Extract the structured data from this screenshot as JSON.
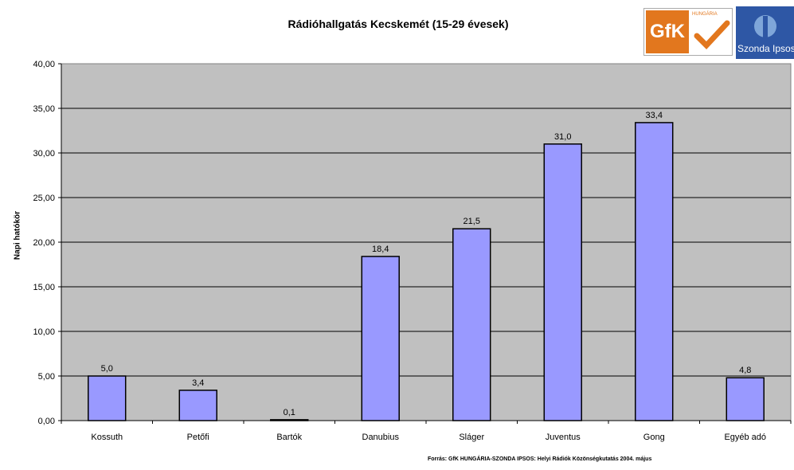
{
  "logos": {
    "gfk_text": "GfK",
    "gfk_sub": "HUNGÁRIA",
    "szonda_text": "Szonda Ipsos",
    "gfk_color": "#e2771e",
    "szonda_color": "#2e57a5"
  },
  "source_note": "Forrás: GfK HUNGÁRIA-SZONDA IPSOS: Helyi Rádiók Közönségkutatás 2004. május",
  "chart_data": {
    "type": "bar",
    "title": "Rádióhallgatás Kecskemét (15-29 évesek)",
    "xlabel": "",
    "ylabel": "Napi hatókör",
    "categories": [
      "Kossuth",
      "Petőfi",
      "Bartók",
      "Danubius",
      "Sláger",
      "Juventus",
      "Gong",
      "Egyéb adó"
    ],
    "values": [
      5.0,
      3.4,
      0.1,
      18.4,
      21.5,
      31.0,
      33.4,
      4.8
    ],
    "data_labels": [
      "5,0",
      "3,4",
      "0,1",
      "18,4",
      "21,5",
      "31,0",
      "33,4",
      "4,8"
    ],
    "ylim": [
      0,
      40
    ],
    "yticks": [
      "0,00",
      "5,00",
      "10,00",
      "15,00",
      "20,00",
      "25,00",
      "30,00",
      "35,00",
      "40,00"
    ],
    "grid": true,
    "bar_color": "#9999ff",
    "plot_background": "#c0c0c0"
  }
}
